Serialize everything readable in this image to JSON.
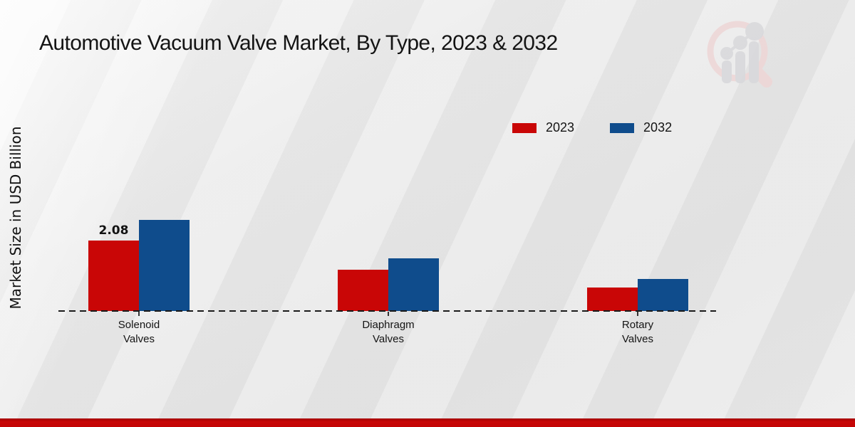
{
  "title": "Automotive Vacuum Valve Market, By Type, 2023 & 2032",
  "y_axis_label": "Market Size in USD Billion",
  "logo_icon": "magnifier-bar-chart-logo",
  "footer": {
    "bar_color": "#c20505"
  },
  "chart_data": {
    "type": "bar",
    "categories": [
      "Solenoid\nValves",
      "Diaphragm\nValves",
      "Rotary\nValves"
    ],
    "series": [
      {
        "name": "2023",
        "color": "#c90606",
        "values": [
          2.08,
          1.22,
          0.69
        ]
      },
      {
        "name": "2032",
        "color": "#0f4c8c",
        "values": [
          2.69,
          1.55,
          0.95
        ]
      }
    ],
    "bar_labels": [
      {
        "series": "2023",
        "category_index": 0,
        "text": "2.08"
      }
    ],
    "title": "Automotive Vacuum Valve Market, By Type, 2023 & 2032",
    "xlabel": "",
    "ylabel": "Market Size in USD Billion",
    "ylim": [
      0,
      3
    ],
    "grid": false,
    "y_ticks_visible": false,
    "baseline_style": "dashed",
    "legend_position": "upper-right"
  }
}
